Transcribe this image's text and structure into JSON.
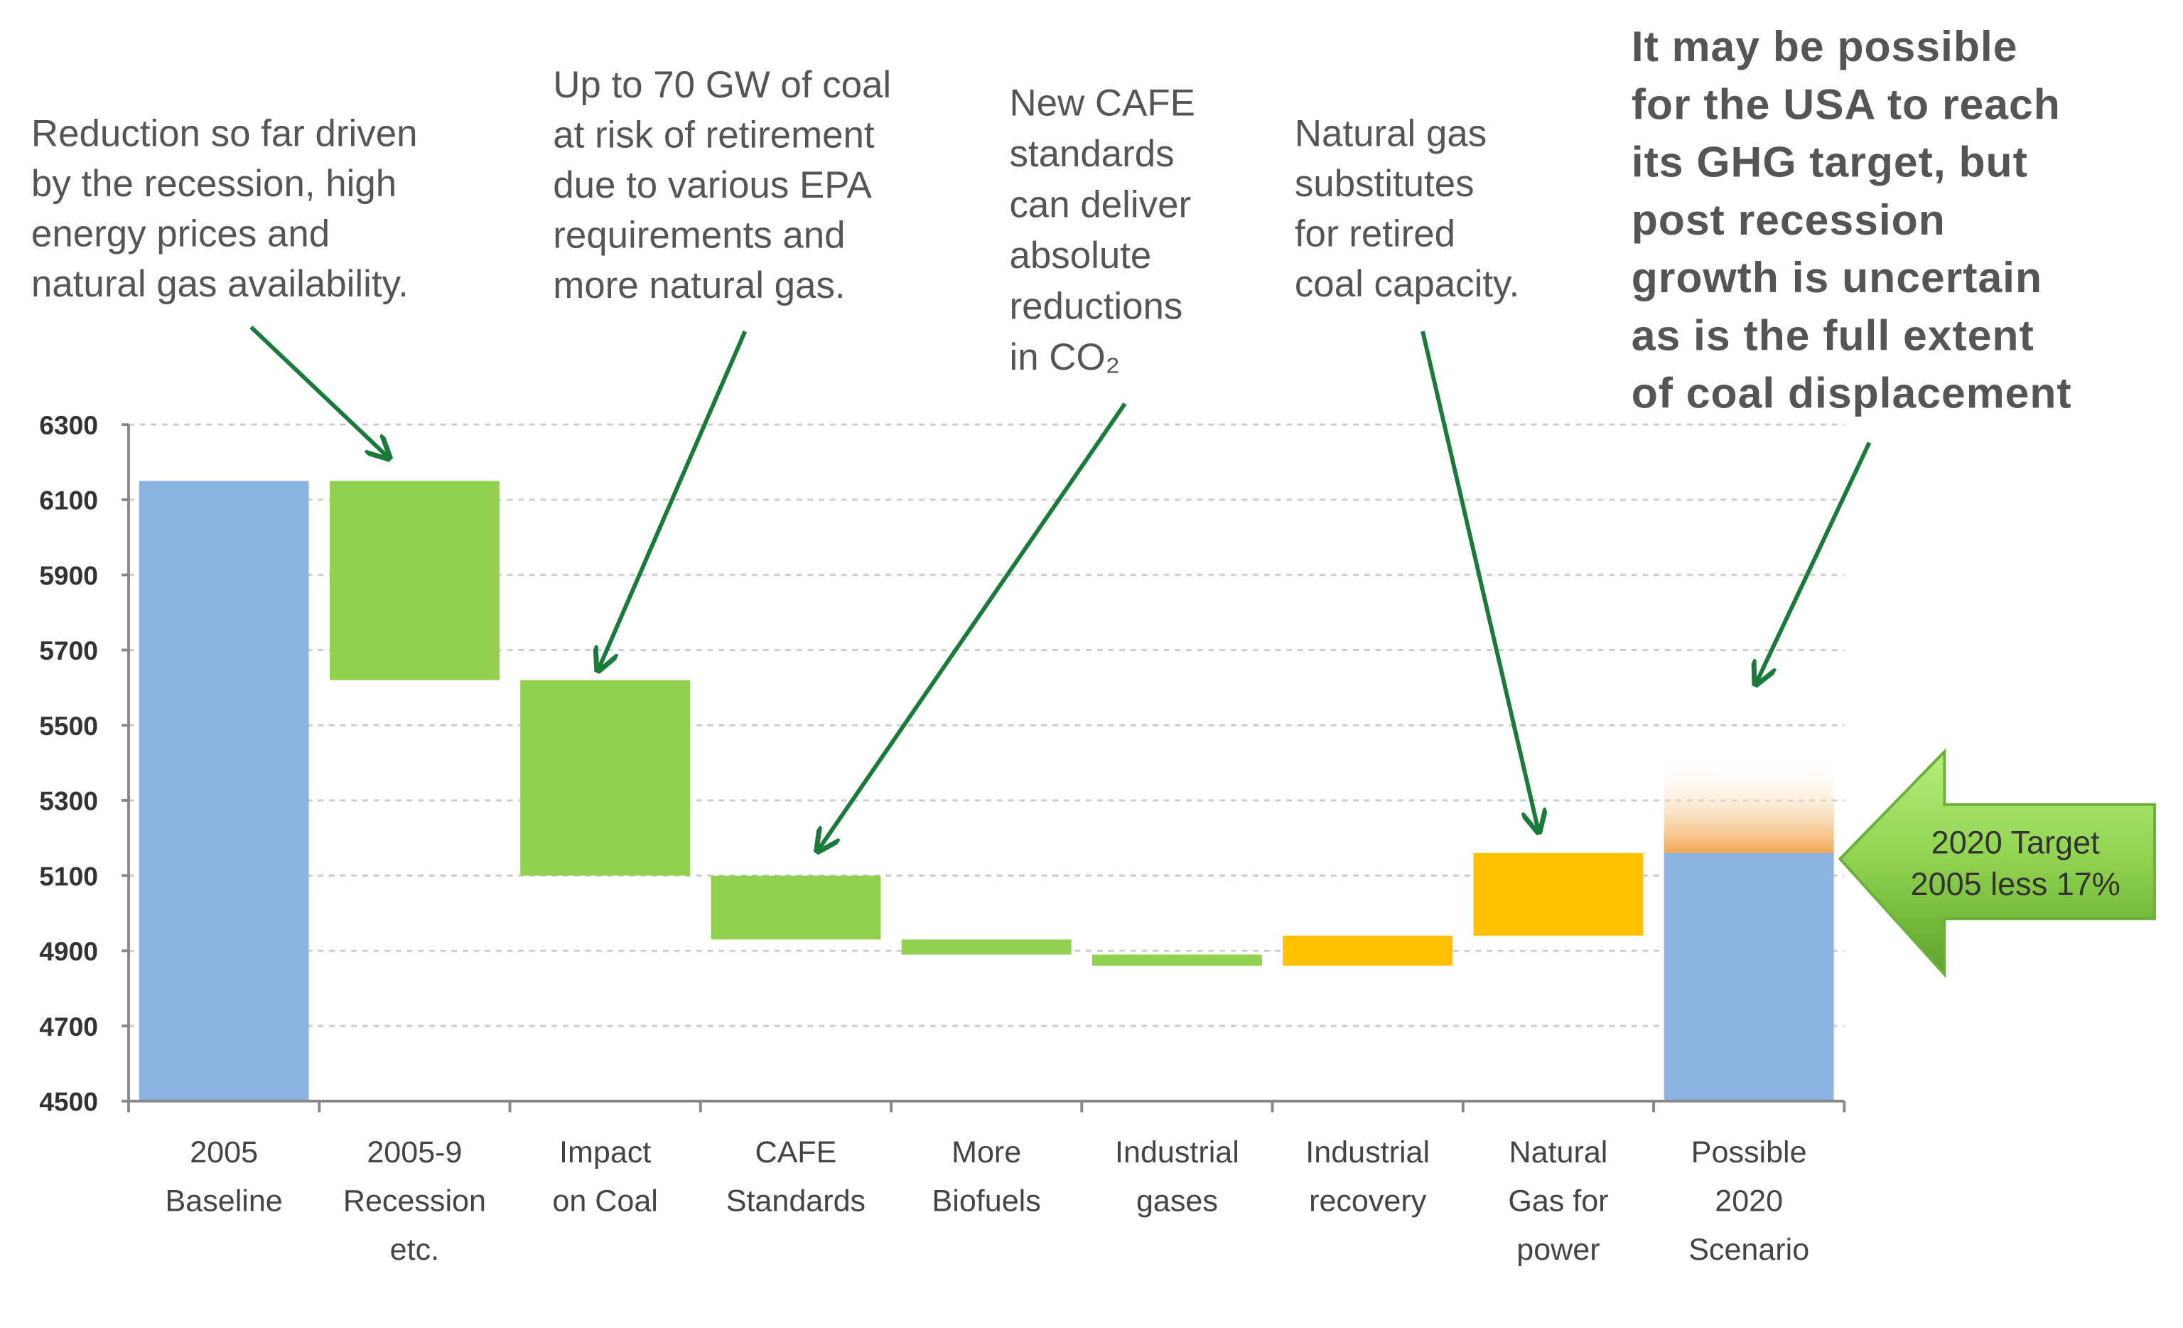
{
  "chart_data": {
    "type": "waterfall",
    "title": "",
    "xlabel": "",
    "ylabel": "",
    "ylim": [
      4500,
      6300
    ],
    "yticks": [
      4500,
      4700,
      4900,
      5100,
      5300,
      5500,
      5700,
      5900,
      6100,
      6300
    ],
    "grid": true,
    "categories": [
      [
        "2005",
        "Baseline"
      ],
      [
        "2005-9",
        "Recession",
        "etc."
      ],
      [
        "Impact",
        "on Coal"
      ],
      [
        "CAFE",
        "Standards"
      ],
      [
        "More",
        "Biofuels"
      ],
      [
        "Industrial",
        "gases"
      ],
      [
        "Industrial",
        "recovery"
      ],
      [
        "Natural",
        "Gas for",
        "power"
      ],
      [
        "Possible",
        "2020",
        "Scenario"
      ]
    ],
    "bars": [
      {
        "from": 4500,
        "to": 6150,
        "kind": "total"
      },
      {
        "from": 6150,
        "to": 5620,
        "kind": "decrease"
      },
      {
        "from": 5620,
        "to": 5100,
        "kind": "decrease"
      },
      {
        "from": 5100,
        "to": 4930,
        "kind": "decrease"
      },
      {
        "from": 4930,
        "to": 4890,
        "kind": "decrease"
      },
      {
        "from": 4890,
        "to": 4860,
        "kind": "decrease"
      },
      {
        "from": 4860,
        "to": 4940,
        "kind": "increase"
      },
      {
        "from": 4940,
        "to": 5160,
        "kind": "increase"
      },
      {
        "from": 4500,
        "to": 5160,
        "kind": "total",
        "uncertainty_to": 5410
      }
    ],
    "colors": {
      "total": "#8db3e2",
      "decrease": "#92d050",
      "increase": "#ffc000",
      "uncertainty": "#f0b070",
      "arrow": "#1a7a3a",
      "target_arrow": "#8fd14f"
    },
    "annotations": [
      {
        "lines": [
          "Reduction so far driven",
          "by the recession, high",
          "energy prices and",
          "natural gas availability."
        ],
        "points_to": "2005-9 Recession etc."
      },
      {
        "lines": [
          "Up to 70 GW of coal",
          "at risk of retirement",
          "due to various EPA",
          "requirements and",
          "more natural gas."
        ],
        "points_to": "Impact on Coal"
      },
      {
        "lines": [
          "New CAFE",
          "standards",
          "can deliver",
          "absolute",
          "reductions",
          "in CO₂"
        ],
        "points_to": "CAFE Standards"
      },
      {
        "lines": [
          "Natural gas",
          "substitutes",
          "for retired",
          "coal capacity."
        ],
        "points_to": "Natural Gas for power"
      },
      {
        "lines": [
          "It may be possible",
          "for the USA to reach",
          "its GHG target, but",
          "post recession",
          "growth is uncertain",
          "as is the full extent",
          "of coal displacement"
        ],
        "points_to": "Possible 2020 Scenario"
      }
    ],
    "target_label": [
      "2020 Target",
      "2005 less 17%"
    ]
  }
}
